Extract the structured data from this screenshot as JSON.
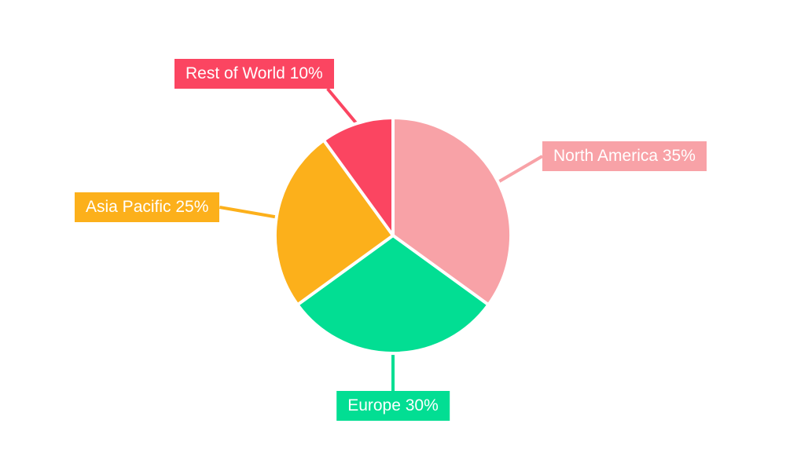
{
  "chart_data": {
    "type": "pie",
    "title": "",
    "categories": [
      "North America",
      "Europe",
      "Asia Pacific",
      "Rest of World"
    ],
    "values": [
      35,
      30,
      25,
      10
    ],
    "unit": "%",
    "start_angle_deg": 0,
    "direction": "clockwise",
    "labels_position": "outside-with-leader-lines",
    "legend": "none",
    "slices": [
      {
        "label": "North America",
        "value": 35,
        "display": "North America 35%",
        "color": "#F8A2A7"
      },
      {
        "label": "Europe",
        "value": 30,
        "display": "Europe 30%",
        "color": "#02DE93"
      },
      {
        "label": "Asia Pacific",
        "value": 25,
        "display": "Asia Pacific 25%",
        "color": "#FCB01B"
      },
      {
        "label": "Rest of World",
        "value": 10,
        "display": "Rest of World 10%",
        "color": "#FB4561"
      }
    ],
    "slice_separator_color": "#FFFFFF",
    "label_text_color": "#FFFFFF",
    "background_color": "#FFFFFF"
  }
}
